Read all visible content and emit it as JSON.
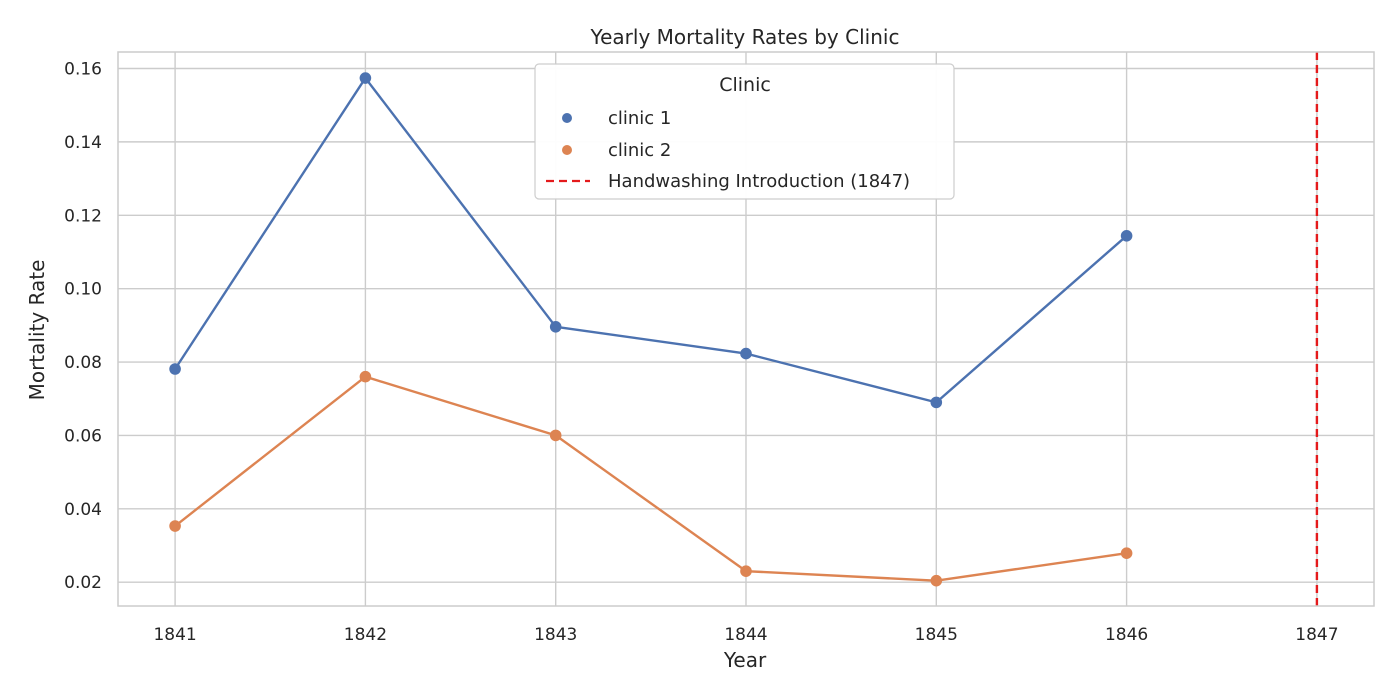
{
  "chart_data": {
    "type": "line",
    "title": "Yearly Mortality Rates by Clinic",
    "xlabel": "Year",
    "ylabel": "Mortality Rate",
    "x": [
      1841,
      1842,
      1843,
      1844,
      1845,
      1846
    ],
    "x_ticks": [
      "1841",
      "1842",
      "1843",
      "1844",
      "1845",
      "1846",
      "1847"
    ],
    "y_ticks": [
      "0.02",
      "0.04",
      "0.06",
      "0.08",
      "0.10",
      "0.12",
      "0.14",
      "0.16"
    ],
    "xlim": [
      1840.7,
      1847.3
    ],
    "ylim": [
      0.0135,
      0.1645
    ],
    "grid": true,
    "legend": {
      "title": "Clinic",
      "placement": "top-center"
    },
    "series": [
      {
        "name": "clinic 1",
        "color": "#4c72b0",
        "values": [
          0.0781,
          0.1574,
          0.0896,
          0.0823,
          0.069,
          0.1144
        ]
      },
      {
        "name": "clinic 2",
        "color": "#dd8452",
        "values": [
          0.0353,
          0.076,
          0.06,
          0.023,
          0.0204,
          0.0279
        ]
      }
    ],
    "annotations": [
      {
        "type": "vline",
        "x": 1847,
        "label": "Handwashing Introduction (1847)",
        "color": "#e41a1c",
        "style": "dashed"
      }
    ]
  }
}
